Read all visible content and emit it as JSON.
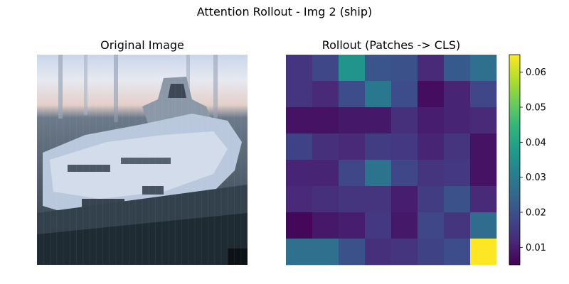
{
  "figure": {
    "title": "Attention Rollout - Img 2 (ship)"
  },
  "panels": {
    "original": {
      "title": "Original Image",
      "content": "pixelated low-resolution photo of a white ship/yacht at a dock under a pale sky"
    },
    "rollout": {
      "title": "Rollout (Patches -> CLS)"
    }
  },
  "colormap": "viridis",
  "colors": {
    "viridis": [
      "#440154",
      "#482878",
      "#3e4989",
      "#31688e",
      "#26828e",
      "#1f9e89",
      "#35b779",
      "#6ece58",
      "#b5de2b",
      "#fde725"
    ]
  },
  "chart_data": {
    "type": "heatmap",
    "title": "Rollout (Patches -> CLS)",
    "rows": 8,
    "cols": 8,
    "values": [
      [
        0.014,
        0.018,
        0.036,
        0.021,
        0.02,
        0.012,
        0.022,
        0.027
      ],
      [
        0.014,
        0.012,
        0.019,
        0.029,
        0.019,
        0.007,
        0.011,
        0.018
      ],
      [
        0.008,
        0.008,
        0.009,
        0.009,
        0.013,
        0.01,
        0.011,
        0.012
      ],
      [
        0.017,
        0.013,
        0.012,
        0.016,
        0.015,
        0.011,
        0.014,
        0.008
      ],
      [
        0.011,
        0.011,
        0.018,
        0.028,
        0.018,
        0.014,
        0.015,
        0.008
      ],
      [
        0.012,
        0.013,
        0.014,
        0.014,
        0.01,
        0.016,
        0.02,
        0.012
      ],
      [
        0.006,
        0.009,
        0.01,
        0.015,
        0.009,
        0.018,
        0.014,
        0.026
      ],
      [
        0.027,
        0.027,
        0.02,
        0.013,
        0.014,
        0.017,
        0.019,
        0.065
      ]
    ],
    "vmin": 0.005,
    "vmax": 0.065,
    "colorbar_ticks": [
      0.01,
      0.02,
      0.03,
      0.04,
      0.05,
      0.06
    ],
    "colorbar_tick_labels": [
      "0.01",
      "0.02",
      "0.03",
      "0.04",
      "0.05",
      "0.06"
    ]
  }
}
